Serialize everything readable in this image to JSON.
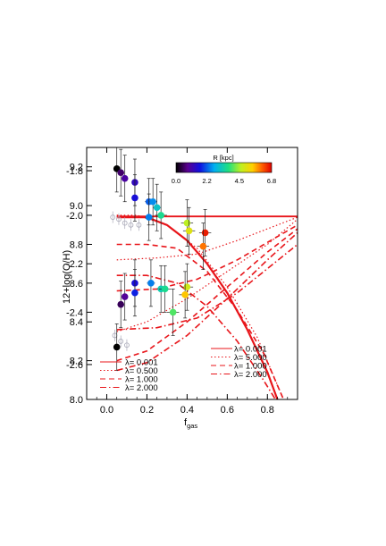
{
  "chart_data": {
    "type": "scatter",
    "xlabel_main": "f",
    "xlabel_sub": "gas",
    "ylabel": "12+log(O/H)",
    "xlim": [
      -0.1,
      0.95
    ],
    "ylim": [
      8.0,
      9.3
    ],
    "x_ticks": [
      "0.0",
      "0.2",
      "0.4",
      "0.6",
      "0.8"
    ],
    "x_tick_values": [
      0.0,
      0.2,
      0.4,
      0.6,
      0.8
    ],
    "y_ticks": [
      "8.0",
      "8.2",
      "8.4",
      "8.6",
      "8.8",
      "9.0",
      "9.2"
    ],
    "y_tick_values": [
      8.0,
      8.2,
      8.4,
      8.6,
      8.8,
      9.0,
      9.2
    ],
    "y_ticks_overlay": [
      "-1.8",
      "-2.0",
      "-2.2",
      "-2.4",
      "-2.6"
    ],
    "y_ticks_overlay_values": [
      9.18,
      8.95,
      8.7,
      8.45,
      8.18
    ],
    "colorbar": {
      "title": "R [kpc]",
      "ticks": [
        "0.0",
        "2.2",
        "4.5",
        "6.8"
      ],
      "range": [
        0.0,
        6.8
      ]
    },
    "legend_left": [
      {
        "label": "λ=  0.001",
        "style": "solid"
      },
      {
        "label": "λ=  0.500",
        "style": "dotted"
      },
      {
        "label": "λ=  1.000",
        "style": "dashed"
      },
      {
        "label": "λ=  2.000",
        "style": "dashdot"
      }
    ],
    "legend_right": [
      {
        "label": "λ=  0.001",
        "style": "solid"
      },
      {
        "label": "λ=  5.000",
        "style": "dotted"
      },
      {
        "label": "λ=  1.000",
        "style": "dashed"
      },
      {
        "label": "λ=  2.000",
        "style": "dashdot"
      }
    ],
    "points": [
      {
        "x": 0.05,
        "y": 9.19,
        "r": 0.0,
        "ex": 0.0,
        "ey": 0.12
      },
      {
        "x": 0.07,
        "y": 9.17,
        "r": 0.6,
        "ex": 0.0,
        "ey": 0.12
      },
      {
        "x": 0.09,
        "y": 9.14,
        "r": 1.0,
        "ex": 0.0,
        "ey": 0.12
      },
      {
        "x": 0.14,
        "y": 9.12,
        "r": 1.3,
        "ex": 0.0,
        "ey": 0.12
      },
      {
        "x": 0.14,
        "y": 9.04,
        "r": 1.6,
        "ex": 0.01,
        "ey": 0.12
      },
      {
        "x": 0.21,
        "y": 9.02,
        "r": 2.2,
        "ex": 0.02,
        "ey": 0.12
      },
      {
        "x": 0.23,
        "y": 9.02,
        "r": 2.5,
        "ex": 0.02,
        "ey": 0.12
      },
      {
        "x": 0.25,
        "y": 8.99,
        "r": 3.1,
        "ex": 0.02,
        "ey": 0.12
      },
      {
        "x": 0.27,
        "y": 8.95,
        "r": 3.6,
        "ex": 0.03,
        "ey": 0.12
      },
      {
        "x": 0.21,
        "y": 8.94,
        "r": 2.4,
        "ex": 0.02,
        "ey": 0.12
      },
      {
        "x": 0.4,
        "y": 8.91,
        "r": 4.6,
        "ex": 0.03,
        "ey": 0.12
      },
      {
        "x": 0.41,
        "y": 8.87,
        "r": 5.0,
        "ex": 0.03,
        "ey": 0.12
      },
      {
        "x": 0.49,
        "y": 8.86,
        "r": 6.6,
        "ex": 0.03,
        "ey": 0.12
      },
      {
        "x": 0.48,
        "y": 8.79,
        "r": 6.0,
        "ex": 0.03,
        "ey": 0.12
      },
      {
        "x": 0.14,
        "y": 8.6,
        "r": 1.6,
        "ex": 0.01,
        "ey": 0.12
      },
      {
        "x": 0.22,
        "y": 8.6,
        "r": 2.4,
        "ex": 0.02,
        "ey": 0.12
      },
      {
        "x": 0.27,
        "y": 8.57,
        "r": 3.3,
        "ex": 0.02,
        "ey": 0.12
      },
      {
        "x": 0.29,
        "y": 8.57,
        "r": 3.6,
        "ex": 0.03,
        "ey": 0.12
      },
      {
        "x": 0.4,
        "y": 8.58,
        "r": 4.8,
        "ex": 0.03,
        "ey": 0.12
      },
      {
        "x": 0.39,
        "y": 8.54,
        "r": 5.5,
        "ex": 0.03,
        "ey": 0.12
      },
      {
        "x": 0.14,
        "y": 8.55,
        "r": 1.8,
        "ex": 0.01,
        "ey": 0.12
      },
      {
        "x": 0.09,
        "y": 8.53,
        "r": 0.9,
        "ex": 0.0,
        "ey": 0.12
      },
      {
        "x": 0.07,
        "y": 8.49,
        "r": 0.5,
        "ex": 0.0,
        "ey": 0.12
      },
      {
        "x": 0.33,
        "y": 8.45,
        "r": 4.0,
        "ex": 0.03,
        "ey": 0.12
      },
      {
        "x": 0.05,
        "y": 8.27,
        "r": 0.0,
        "ex": 0.0,
        "ey": 0.12
      }
    ],
    "curves": [
      {
        "style": "solid",
        "width": 2.2,
        "points": [
          [
            0.05,
            8.94
          ],
          [
            0.2,
            8.94
          ],
          [
            0.3,
            8.9
          ],
          [
            0.4,
            8.82
          ],
          [
            0.5,
            8.7
          ],
          [
            0.6,
            8.55
          ],
          [
            0.7,
            8.36
          ],
          [
            0.8,
            8.14
          ],
          [
            0.85,
            8.0
          ]
        ]
      },
      {
        "style": "solid",
        "width": 1.8,
        "points": [
          [
            0.05,
            8.944
          ],
          [
            0.95,
            8.944
          ]
        ]
      },
      {
        "style": "dotted",
        "width": 1.2,
        "points": [
          [
            0.05,
            8.95
          ],
          [
            0.15,
            8.95
          ],
          [
            0.3,
            8.9
          ],
          [
            0.45,
            8.78
          ],
          [
            0.6,
            8.58
          ],
          [
            0.75,
            8.32
          ],
          [
            0.88,
            8.0
          ]
        ]
      },
      {
        "style": "dotted",
        "width": 1.2,
        "points": [
          [
            0.05,
            8.72
          ],
          [
            0.25,
            8.73
          ],
          [
            0.45,
            8.75
          ],
          [
            0.65,
            8.82
          ],
          [
            0.95,
            8.94
          ]
        ]
      },
      {
        "style": "dotted",
        "width": 1.2,
        "points": [
          [
            0.05,
            8.35
          ],
          [
            0.2,
            8.4
          ],
          [
            0.4,
            8.52
          ],
          [
            0.6,
            8.66
          ],
          [
            0.8,
            8.8
          ],
          [
            0.95,
            8.93
          ]
        ]
      },
      {
        "style": "dashed",
        "width": 1.6,
        "points": [
          [
            0.05,
            8.8
          ],
          [
            0.2,
            8.8
          ],
          [
            0.35,
            8.78
          ],
          [
            0.5,
            8.66
          ],
          [
            0.65,
            8.46
          ],
          [
            0.78,
            8.24
          ],
          [
            0.88,
            8.0
          ]
        ]
      },
      {
        "style": "dashed",
        "width": 1.6,
        "points": [
          [
            0.05,
            8.56
          ],
          [
            0.25,
            8.57
          ],
          [
            0.45,
            8.62
          ],
          [
            0.65,
            8.72
          ],
          [
            0.95,
            8.9
          ]
        ]
      },
      {
        "style": "dashed",
        "width": 1.6,
        "points": [
          [
            0.05,
            8.2
          ],
          [
            0.2,
            8.25
          ],
          [
            0.4,
            8.4
          ],
          [
            0.6,
            8.58
          ],
          [
            0.8,
            8.76
          ],
          [
            0.95,
            8.88
          ]
        ]
      },
      {
        "style": "dashdot",
        "width": 1.6,
        "points": [
          [
            0.05,
            8.64
          ],
          [
            0.2,
            8.64
          ],
          [
            0.35,
            8.6
          ],
          [
            0.5,
            8.48
          ],
          [
            0.65,
            8.3
          ],
          [
            0.78,
            8.1
          ],
          [
            0.84,
            8.0
          ]
        ]
      },
      {
        "style": "dashdot",
        "width": 1.6,
        "points": [
          [
            0.05,
            8.36
          ],
          [
            0.25,
            8.37
          ],
          [
            0.45,
            8.42
          ],
          [
            0.65,
            8.55
          ],
          [
            0.95,
            8.8
          ]
        ]
      },
      {
        "style": "dashdot",
        "width": 1.6,
        "points": [
          [
            0.05,
            8.15
          ],
          [
            0.2,
            8.19
          ],
          [
            0.4,
            8.33
          ],
          [
            0.6,
            8.52
          ],
          [
            0.8,
            8.72
          ],
          [
            0.95,
            8.86
          ]
        ]
      }
    ],
    "grey_points": [
      {
        "x": 0.03,
        "y": 8.94
      },
      {
        "x": 0.06,
        "y": 8.93
      },
      {
        "x": 0.09,
        "y": 8.91
      },
      {
        "x": 0.12,
        "y": 8.9
      },
      {
        "x": 0.16,
        "y": 8.9
      },
      {
        "x": 0.04,
        "y": 8.33
      },
      {
        "x": 0.07,
        "y": 8.3
      },
      {
        "x": 0.1,
        "y": 8.28
      }
    ],
    "colors": {
      "curve": "#e8151a",
      "grey_point": "#a9a9b8",
      "error_bar": "#222222"
    }
  }
}
